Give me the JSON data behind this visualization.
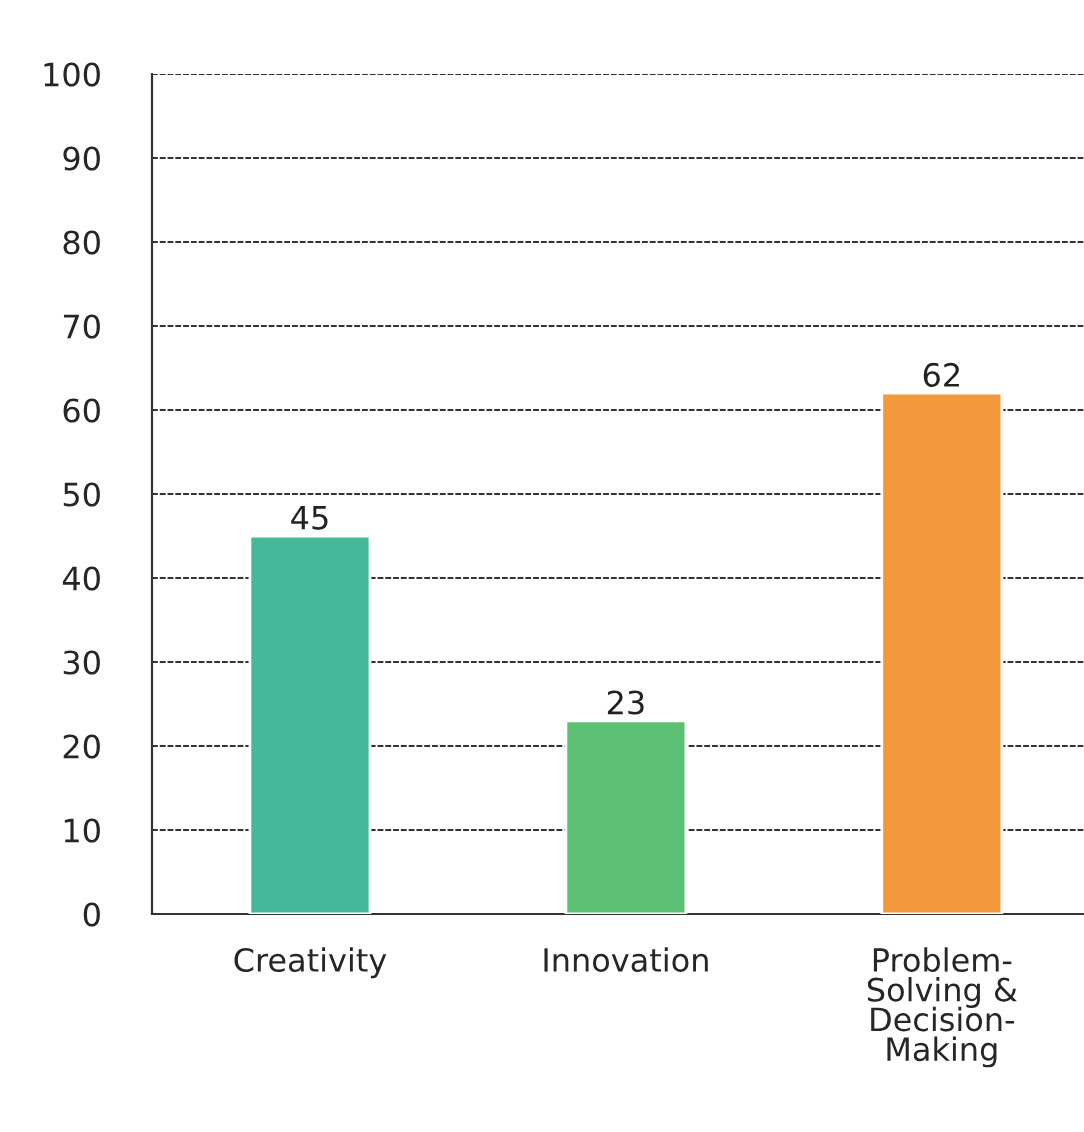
{
  "chart_data": {
    "type": "bar",
    "categories": [
      "Creativity",
      "Innovation",
      "Problem-\nSolving &\nDecision-\nMaking"
    ],
    "values": [
      45,
      23,
      62
    ],
    "colors": [
      "#45b89a",
      "#5cc174",
      "#f2993c"
    ],
    "ylim": [
      0,
      100
    ],
    "yticks": [
      0,
      10,
      20,
      30,
      40,
      50,
      60,
      70,
      80,
      90,
      100
    ],
    "grid": "y",
    "data_labels": true
  }
}
